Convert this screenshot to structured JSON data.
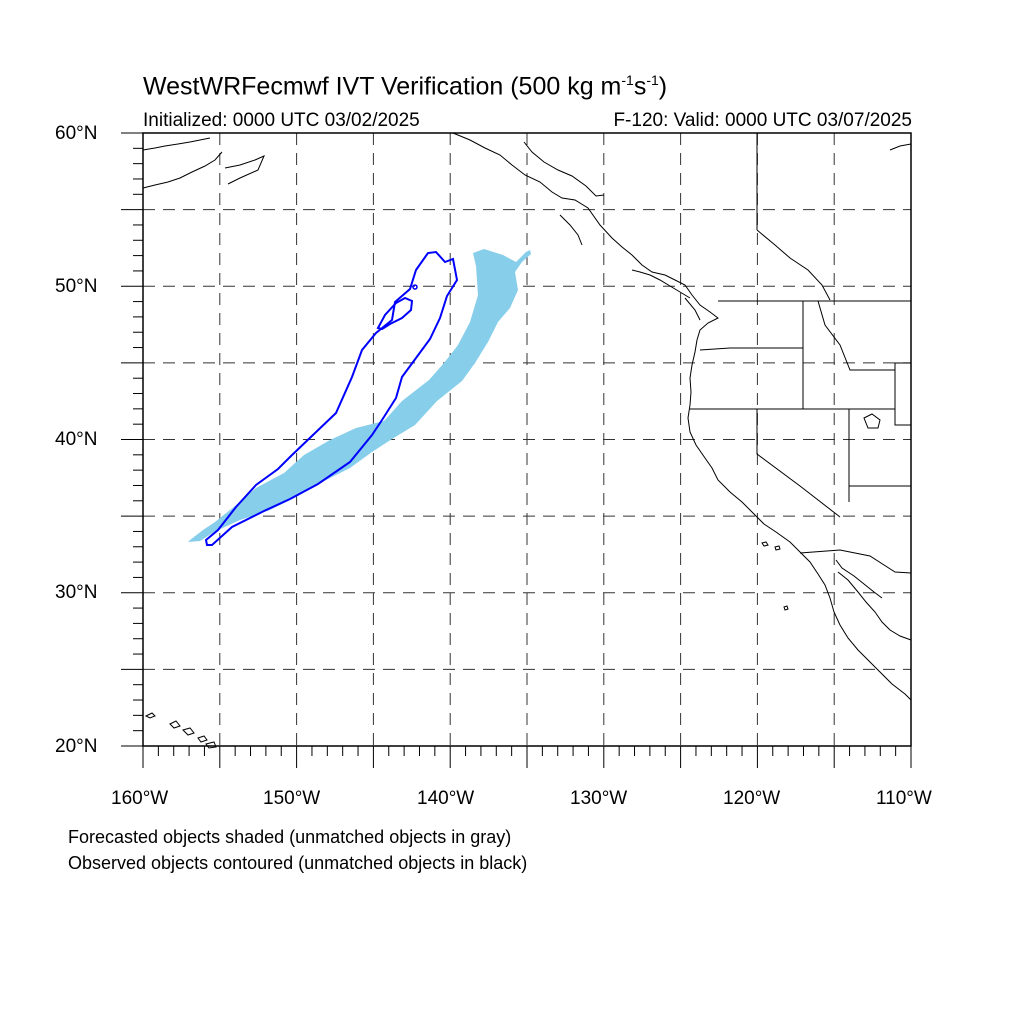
{
  "title": {
    "main": "WestWRFecmwf IVT Verification (500 kg m",
    "exp1": "-1",
    "mid": "s",
    "exp2": "-1",
    "end": ")"
  },
  "subtitle": {
    "initialized": "Initialized: 0000 UTC 03/02/2025",
    "valid": "F-120: Valid: 0000 UTC 03/07/2025"
  },
  "axes": {
    "lat_labels": [
      "60°N",
      "50°N",
      "40°N",
      "30°N",
      "20°N"
    ],
    "lon_labels": [
      "160°W",
      "150°W",
      "140°W",
      "130°W",
      "120°W",
      "110°W"
    ],
    "lat_range": [
      20,
      60
    ],
    "lon_range": [
      -160,
      -110
    ],
    "grid_spacing_deg": 5,
    "grid": "dashed"
  },
  "objects": {
    "forecast_fill_color": "#87ceeb",
    "observed_contour_color": "#0000ff",
    "coast_color": "#000000"
  },
  "notes": [
    "Forecasted objects shaded (unmatched objects in gray)",
    "Observed objects contoured (unmatched objects in black)"
  ]
}
